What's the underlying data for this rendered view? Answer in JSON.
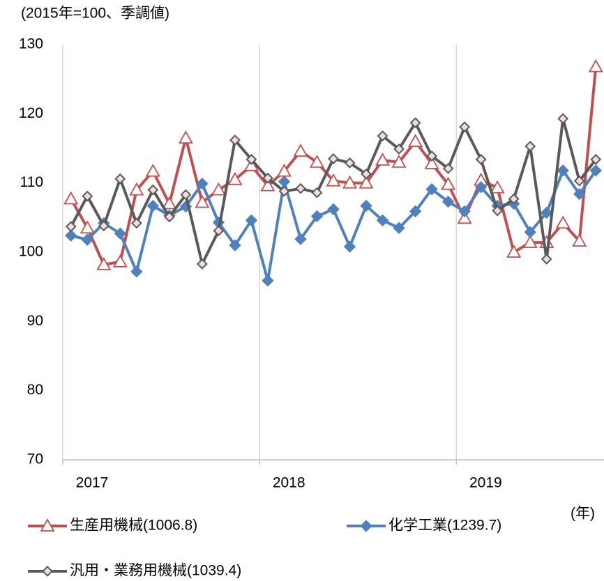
{
  "chart_data": {
    "type": "line",
    "y_label": "(2015年=100、季調値)",
    "x_label": "(年)",
    "categories": [
      null,
      null,
      null,
      null,
      null,
      null,
      null,
      null,
      null,
      null,
      null,
      null,
      null,
      null,
      null,
      null,
      null,
      null,
      null,
      null,
      null,
      null,
      null,
      null,
      null,
      null,
      null,
      null,
      null,
      null,
      null,
      null,
      null
    ],
    "xticks": [
      {
        "value": 0,
        "label": "2017"
      },
      {
        "value": 12,
        "label": "2018"
      },
      {
        "value": 24,
        "label": "2019"
      }
    ],
    "ylim": [
      70,
      130
    ],
    "yticks": [
      70,
      80,
      90,
      100,
      110,
      120,
      130
    ],
    "grid": "x",
    "series": [
      {
        "name": "生産用機械(1006.8)",
        "color": "#c0504d",
        "marker": "triangle",
        "values": [
          107.7,
          103.5,
          98.2,
          98.6,
          109,
          111.7,
          107,
          116.5,
          107.2,
          109,
          110.5,
          112.5,
          109.6,
          111.7,
          114.6,
          113,
          110.3,
          110,
          110,
          113.3,
          113,
          116,
          112.8,
          109.8,
          104.9,
          110.4,
          109.3,
          100,
          101.4,
          101.4,
          104.2,
          101.6,
          126.8
        ]
      },
      {
        "name": "化学工業(1239.7)",
        "color": "#4f81bd",
        "marker": "diamond",
        "values": [
          102.4,
          101.8,
          104.2,
          102.7,
          97.2,
          106.7,
          105.3,
          106.6,
          109.9,
          104.3,
          101,
          104.6,
          95.9,
          110.2,
          101.9,
          105.2,
          106.2,
          100.8,
          106.7,
          104.6,
          103.5,
          105.9,
          109.1,
          107.3,
          105.9,
          109.4,
          106.7,
          107,
          102.9,
          105.7,
          111.8,
          108.4,
          111.8
        ]
      },
      {
        "name": "汎用・業務用機械(1039.4)",
        "color": "#595959",
        "marker": "diamond-light",
        "values": [
          103.7,
          108.1,
          103.8,
          110.6,
          104.2,
          109,
          105.1,
          108.3,
          98.3,
          103.1,
          116.2,
          113.4,
          110.7,
          108.8,
          109.2,
          108.6,
          113.5,
          112.9,
          111.3,
          116.8,
          114.9,
          118.7,
          113.9,
          112.1,
          118.1,
          113.4,
          106,
          107.7,
          115.3,
          99,
          119.3,
          110.3,
          113.4
        ]
      }
    ]
  }
}
